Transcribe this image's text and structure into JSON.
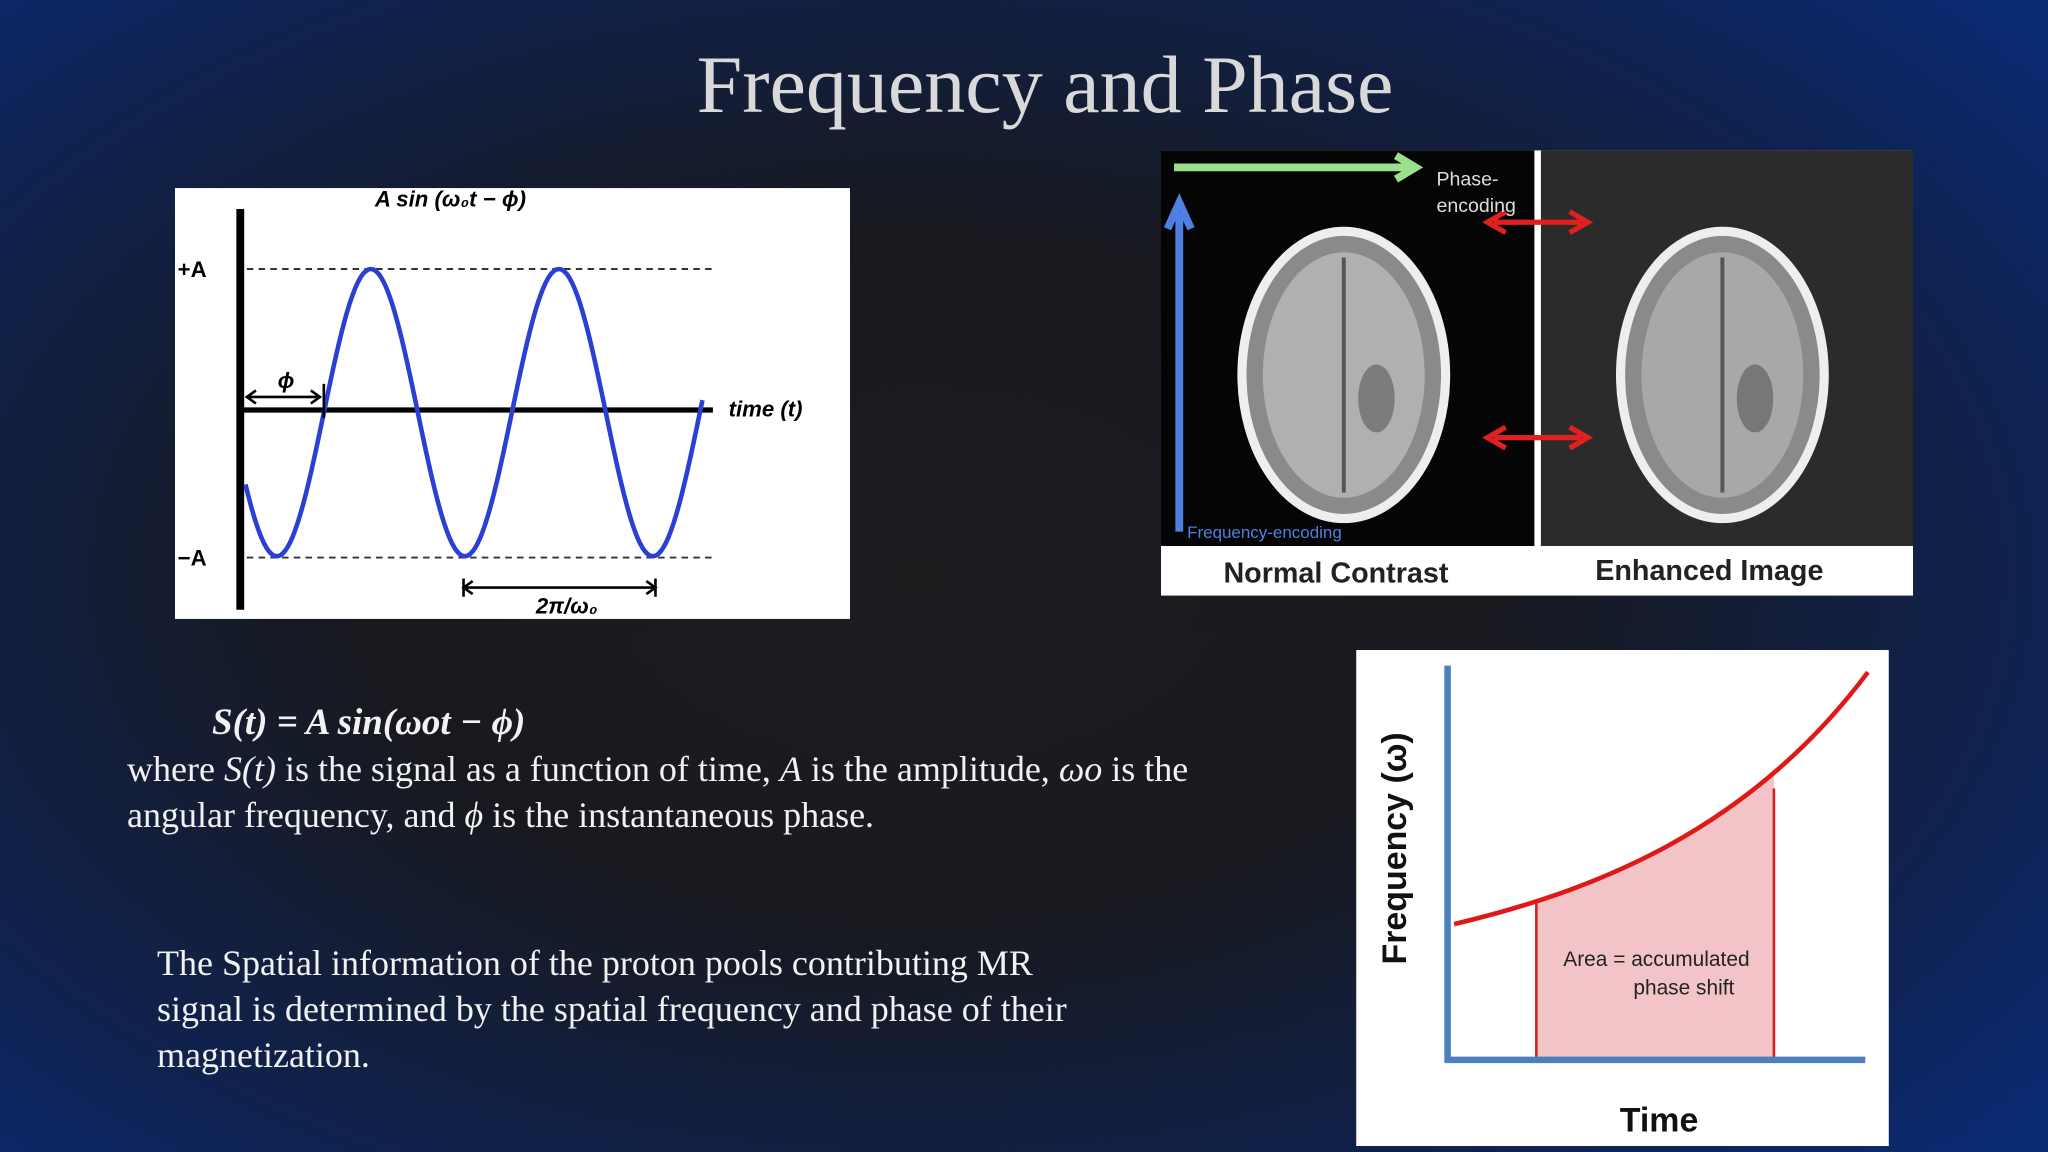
{
  "title": "Frequency and Phase",
  "sine_figure": {
    "formula": "A sin (ω₀t − ϕ)",
    "plus_a": "+A",
    "minus_a": "−A",
    "phase": "ϕ",
    "time_axis": "time (t)",
    "period": "2π/ω₀"
  },
  "mri_figure": {
    "phase_encoding": [
      "Phase-",
      "encoding"
    ],
    "frequency_encoding": "Frequency-encoding",
    "left_caption": "Normal Contrast",
    "right_caption": "Enhanced Image"
  },
  "equation": "S(t) = A sin(ωot − ϕ)",
  "definition": {
    "lines": [
      [
        "where ",
        "S(t)",
        " is the signal as a function of time, ",
        "A",
        " is the amplitude, ",
        "ωo",
        " is the"
      ],
      [
        "angular frequency, and ",
        "ϕ",
        " is the instantaneous phase."
      ]
    ]
  },
  "note": {
    "lines": [
      "The Spatial information of the proton pools contributing MR",
      "signal is determined by the spatial frequency and phase of their",
      "magnetization."
    ]
  },
  "frequency_chart": {
    "y_label": "Frequency (ω)",
    "x_label": "Time",
    "area_label": [
      "Area = accumulated",
      "phase shift"
    ]
  }
}
